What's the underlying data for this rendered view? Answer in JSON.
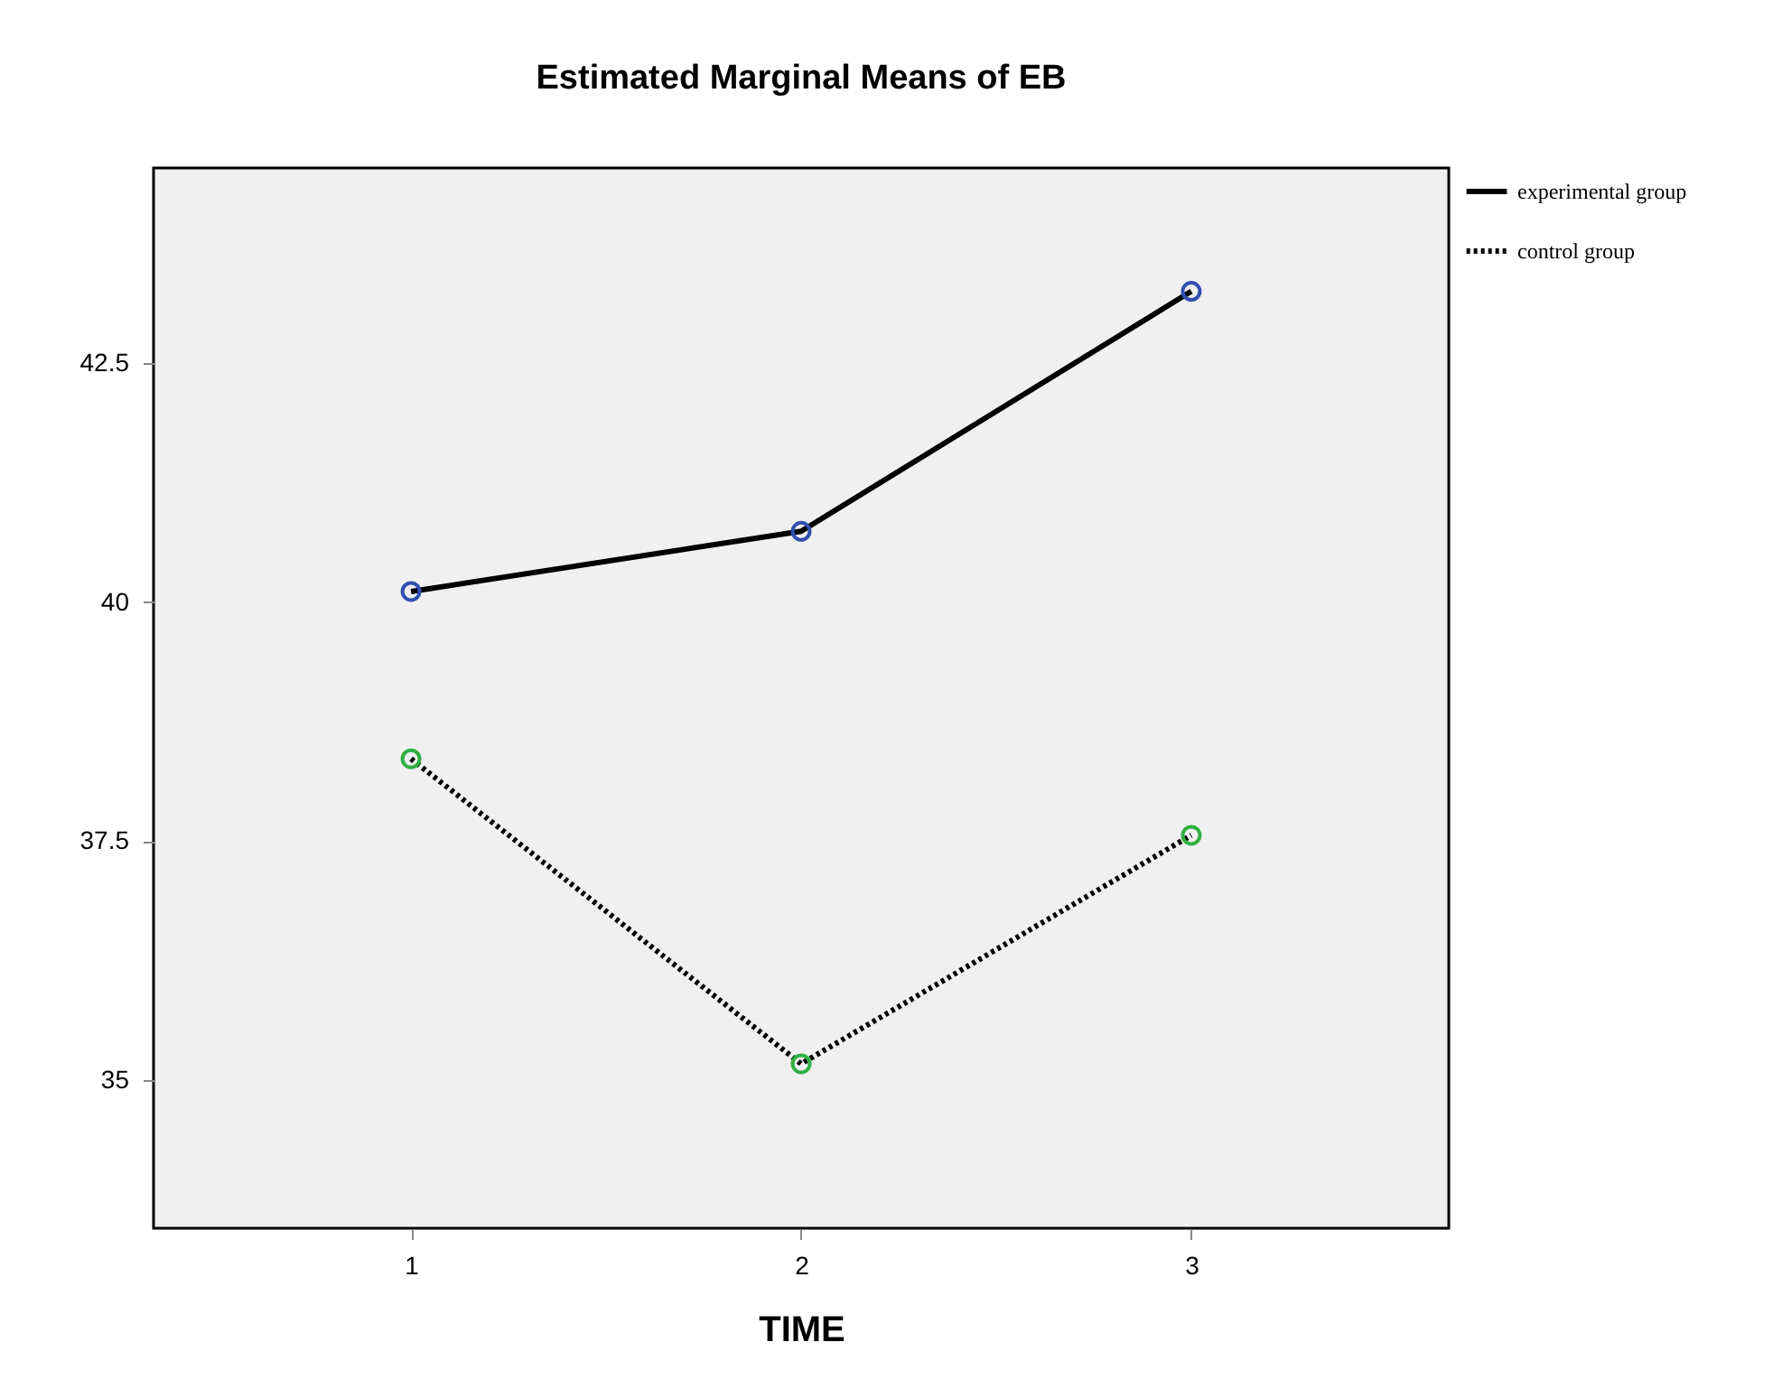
{
  "chart_data": {
    "type": "line",
    "title": "Estimated Marginal Means of EB",
    "xlabel": "TIME",
    "x": [
      1,
      2,
      3
    ],
    "series": [
      {
        "name": "experimental group",
        "color": "#000000",
        "colors": [
          "#3050b0",
          "#3050b0",
          "#3050b0"
        ],
        "line_style": "solid",
        "values": [
          40.11,
          40.74,
          43.25
        ]
      },
      {
        "name": "control group",
        "color": "#000000",
        "colors": [
          "#30b040",
          "#30b040",
          "#30b040"
        ],
        "line_style": "dotted",
        "values": [
          38.36,
          35.17,
          37.56
        ]
      }
    ],
    "xlim": [
      0.34,
      3.66
    ],
    "xticks": [
      1,
      2,
      3
    ],
    "ylim": [
      33.45,
      44.54
    ],
    "yticks": [
      35,
      37.5,
      40,
      42.5
    ],
    "marker": "circle",
    "legend": "right",
    "grid": false
  }
}
